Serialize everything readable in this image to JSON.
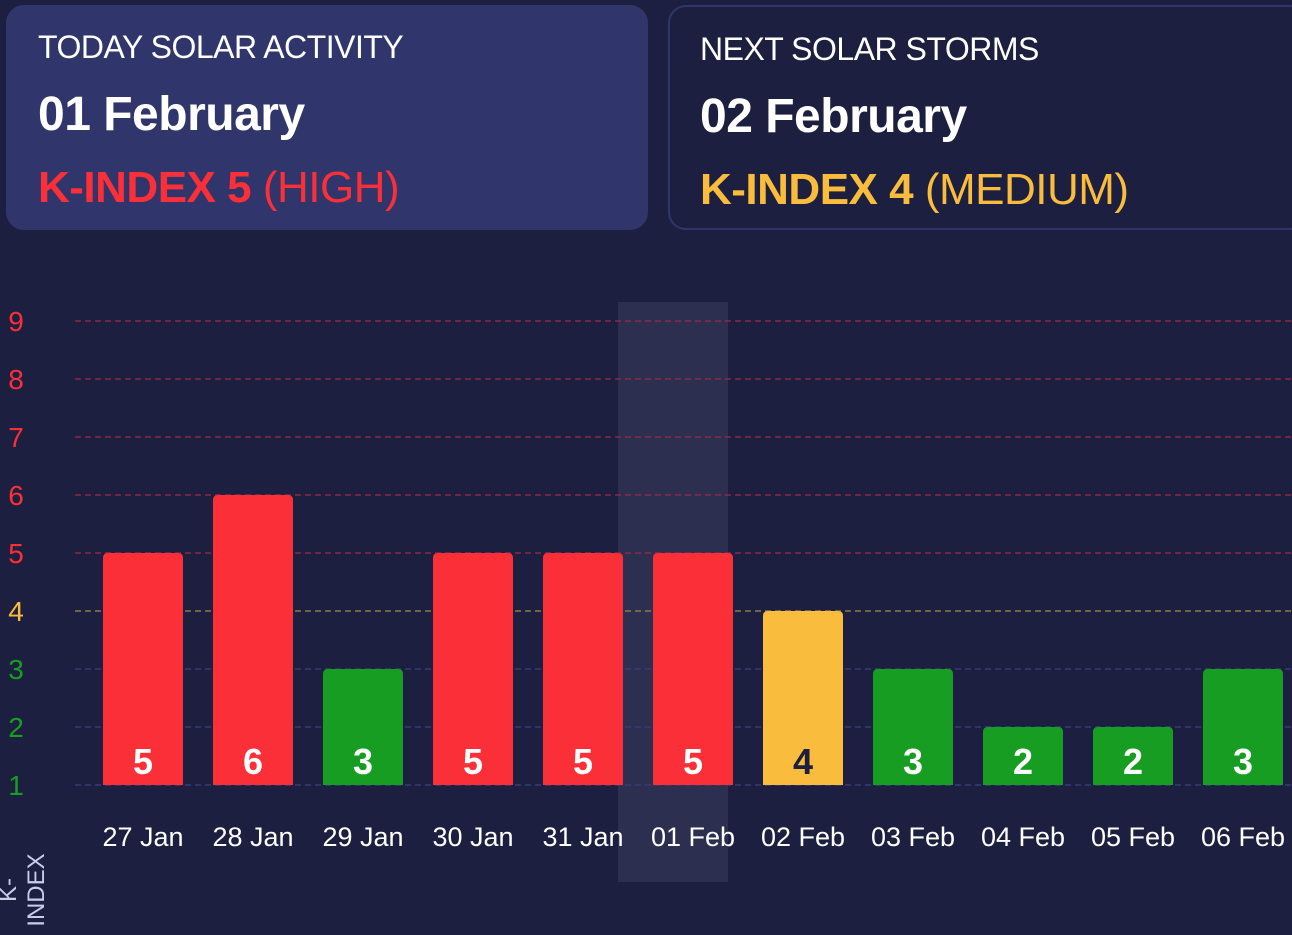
{
  "today": {
    "label": "TODAY SOLAR ACTIVITY",
    "date": "01 February",
    "kindex_label": "K-INDEX 5",
    "level": "(HIGH)"
  },
  "next": {
    "label": "NEXT SOLAR STORMS",
    "date": "02 February",
    "kindex_label": "K-INDEX 4",
    "level": "(MEDIUM)"
  },
  "colors": {
    "high": "#fb2f38",
    "medium": "#f9bc3c",
    "low": "#179e22",
    "background": "#1c1f3f",
    "card": "#30366b"
  },
  "chart_data": {
    "type": "bar",
    "title": "",
    "xlabel": "",
    "ylabel": "K-INDEX",
    "ylim": [
      1,
      9
    ],
    "yticks": [
      "1",
      "2",
      "3",
      "4",
      "5",
      "6",
      "7",
      "8",
      "9"
    ],
    "grid": true,
    "categories": [
      "27 Jan",
      "28 Jan",
      "29 Jan",
      "30 Jan",
      "31 Jan",
      "01 Feb",
      "02 Feb",
      "03 Feb",
      "04 Feb",
      "05 Feb",
      "06 Feb"
    ],
    "values": [
      5,
      6,
      3,
      5,
      5,
      5,
      4,
      3,
      2,
      2,
      3
    ],
    "highlighted": "01 Feb"
  }
}
